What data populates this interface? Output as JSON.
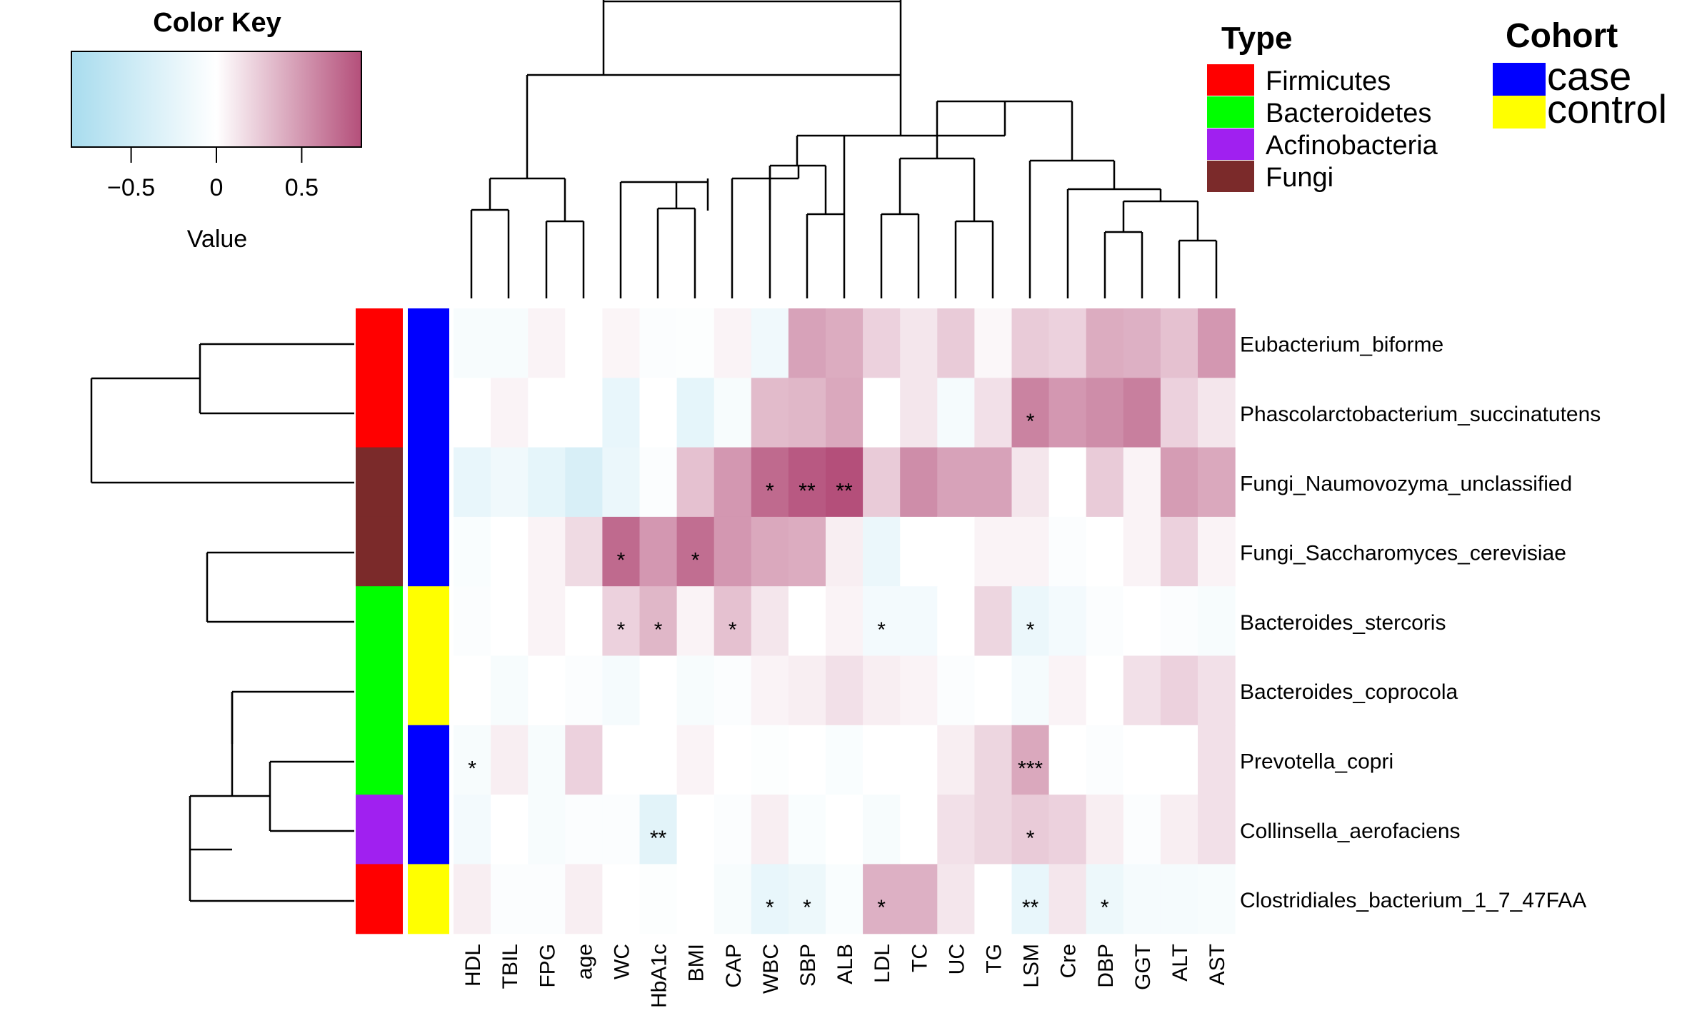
{
  "chart_data": {
    "type": "heatmap",
    "color_key": {
      "title": "Color Key",
      "xlabel": "Value",
      "range": [
        -0.85,
        0.85
      ],
      "ticks": [
        -0.5,
        0,
        0.5
      ],
      "tick_labels": [
        "−0.5",
        "0",
        "0.5"
      ],
      "low_color": "#a8dcee",
      "mid_color": "#ffffff",
      "high_color": "#b44f7a"
    },
    "columns": [
      "HDL",
      "TBIL",
      "FPG",
      "age",
      "WC",
      "HbA1c",
      "BMI",
      "CAP",
      "WBC",
      "SBP",
      "ALB",
      "LDL",
      "TC",
      "UC",
      "TG",
      "LSM",
      "Cre",
      "DBP",
      "GGT",
      "ALT",
      "AST"
    ],
    "rows": [
      "Eubacterium_biforme",
      "Phascolarctobacterium_succinatutens",
      "Fungi_Naumovozyma_unclassified",
      "Fungi_Saccharomyces_cerevisiae",
      "Bacteroides_stercoris",
      "Bacteroides_coprocola",
      "Prevotella_copri",
      "Collinsella_aerofaciens",
      "Clostridiales_bacterium_1_7_47FAA"
    ],
    "row_type": [
      "Firmicutes",
      "Firmicutes",
      "Fungi",
      "Fungi",
      "Bacteroidetes",
      "Bacteroidetes",
      "Bacteroidetes",
      "Acfinobacteria",
      "Firmicutes"
    ],
    "row_cohort": [
      "case",
      "case",
      "case",
      "case",
      "control",
      "control",
      "case",
      "case",
      "control"
    ],
    "values": [
      [
        -0.08,
        -0.08,
        0.06,
        0.0,
        0.05,
        -0.04,
        -0.03,
        0.06,
        -0.15,
        0.45,
        0.4,
        0.22,
        0.12,
        0.25,
        0.04,
        0.25,
        0.22,
        0.4,
        0.38,
        0.3,
        0.5
      ],
      [
        0.0,
        0.06,
        0.0,
        0.0,
        -0.22,
        0.0,
        -0.25,
        -0.08,
        0.33,
        0.35,
        0.42,
        0.0,
        0.12,
        -0.1,
        0.15,
        0.6,
        0.5,
        0.55,
        0.62,
        0.22,
        0.12
      ],
      [
        -0.22,
        -0.15,
        -0.25,
        -0.38,
        -0.2,
        -0.04,
        0.3,
        0.5,
        0.72,
        0.8,
        0.85,
        0.25,
        0.55,
        0.45,
        0.45,
        0.12,
        0.0,
        0.25,
        0.06,
        0.48,
        0.42
      ],
      [
        -0.06,
        0.0,
        0.06,
        0.18,
        0.72,
        0.5,
        0.7,
        0.5,
        0.42,
        0.4,
        0.08,
        -0.2,
        0.0,
        0.0,
        0.06,
        0.06,
        -0.04,
        0.0,
        0.06,
        0.22,
        0.06
      ],
      [
        -0.04,
        0.0,
        0.06,
        0.0,
        0.22,
        0.35,
        0.06,
        0.3,
        0.12,
        0.0,
        0.06,
        -0.12,
        -0.12,
        0.0,
        0.2,
        -0.2,
        -0.12,
        -0.04,
        0.0,
        -0.04,
        -0.08
      ],
      [
        0.0,
        -0.08,
        0.0,
        -0.04,
        -0.1,
        0.0,
        -0.08,
        -0.04,
        0.06,
        0.08,
        0.15,
        0.08,
        0.06,
        -0.04,
        0.0,
        -0.1,
        0.06,
        0.0,
        0.15,
        0.22,
        0.15
      ],
      [
        -0.08,
        0.08,
        -0.08,
        0.22,
        0.0,
        0.0,
        0.06,
        0.0,
        -0.03,
        0.0,
        -0.06,
        0.0,
        0.0,
        0.08,
        0.2,
        0.42,
        0.0,
        -0.04,
        0.0,
        0.0,
        0.15
      ],
      [
        -0.12,
        0.0,
        -0.08,
        -0.04,
        -0.04,
        -0.28,
        0.0,
        -0.04,
        0.08,
        -0.06,
        0.0,
        -0.08,
        0.0,
        0.15,
        0.2,
        0.25,
        0.22,
        0.08,
        -0.04,
        0.08,
        0.15
      ],
      [
        0.08,
        -0.04,
        -0.04,
        0.08,
        0.0,
        -0.03,
        0.0,
        -0.08,
        -0.22,
        -0.18,
        -0.06,
        0.38,
        0.38,
        0.12,
        0.0,
        -0.22,
        0.12,
        -0.18,
        -0.1,
        -0.1,
        -0.08
      ]
    ],
    "significance": [
      [
        "",
        "",
        "",
        "",
        "",
        "",
        "",
        "",
        "",
        "",
        "",
        "",
        "",
        "",
        "",
        "",
        "",
        "",
        "",
        "",
        ""
      ],
      [
        "",
        "",
        "",
        "",
        "",
        "",
        "",
        "",
        "",
        "",
        "",
        "",
        "",
        "",
        "",
        "*",
        "",
        "",
        "",
        "",
        ""
      ],
      [
        "",
        "",
        "",
        "",
        "",
        "",
        "",
        "",
        "*",
        "**",
        "**",
        "",
        "",
        "",
        "",
        "",
        "",
        "",
        "",
        "",
        ""
      ],
      [
        "",
        "",
        "",
        "",
        "*",
        "",
        "*",
        "",
        "",
        "",
        "",
        "",
        "",
        "",
        "",
        "",
        "",
        "",
        "",
        "",
        ""
      ],
      [
        "",
        "",
        "",
        "",
        "*",
        "*",
        "",
        "*",
        "",
        "",
        "",
        "*",
        "",
        "",
        "",
        "*",
        "",
        "",
        "",
        "",
        ""
      ],
      [
        "",
        "",
        "",
        "",
        "",
        "",
        "",
        "",
        "",
        "",
        "",
        "",
        "",
        "",
        "",
        "",
        "",
        "",
        "",
        "",
        ""
      ],
      [
        "*",
        "",
        "",
        "",
        "",
        "",
        "",
        "",
        "",
        "",
        "",
        "",
        "",
        "",
        "",
        "***",
        "",
        "",
        "",
        "",
        ""
      ],
      [
        "",
        "",
        "",
        "",
        "",
        "**",
        "",
        "",
        "",
        "",
        "",
        "",
        "",
        "",
        "",
        "*",
        "",
        "",
        "",
        "",
        ""
      ],
      [
        "",
        "",
        "",
        "",
        "",
        "",
        "",
        "",
        "*",
        "*",
        "",
        "*",
        "",
        "",
        "",
        "**",
        "",
        "*",
        "",
        "",
        ""
      ]
    ]
  },
  "legend_type": {
    "title": "Type",
    "items": [
      {
        "label": "Firmicutes",
        "color": "#ff0000"
      },
      {
        "label": "Bacteroidetes",
        "color": "#00ff00"
      },
      {
        "label": "Acfinobacteria",
        "color": "#a020f0"
      },
      {
        "label": "Fungi",
        "color": "#7b2a2a"
      }
    ]
  },
  "legend_cohort": {
    "title": "Cohort",
    "items": [
      {
        "label": "case",
        "color": "#0000ff"
      },
      {
        "label": "control",
        "color": "#ffff00"
      }
    ]
  }
}
